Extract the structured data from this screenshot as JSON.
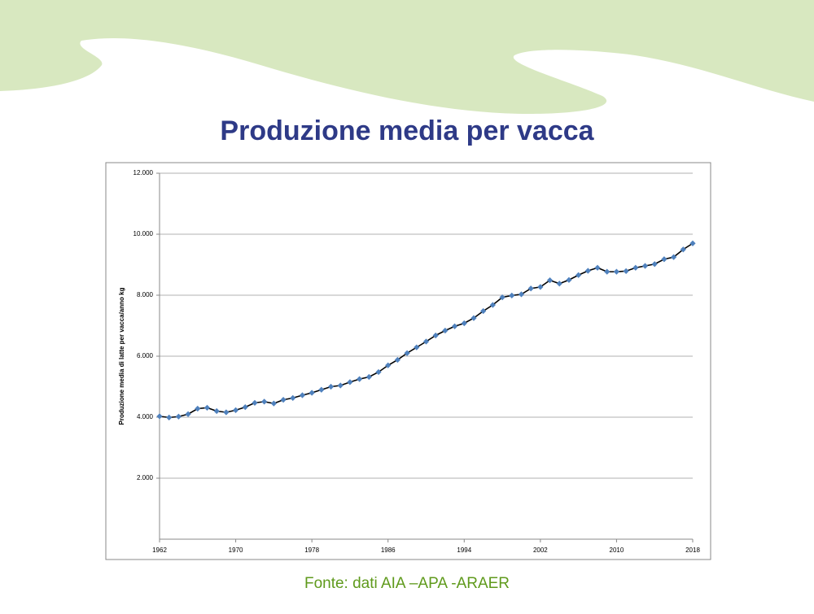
{
  "title": "Produzione media per vacca",
  "source": "Fonte: dati AIA –APA -ARAER",
  "chart_data": {
    "type": "line",
    "y_label": "Produzione media di latte per vacca/anno kg",
    "x": [
      1962,
      1963,
      1964,
      1965,
      1966,
      1967,
      1968,
      1969,
      1970,
      1971,
      1972,
      1973,
      1974,
      1975,
      1976,
      1977,
      1978,
      1979,
      1980,
      1981,
      1982,
      1983,
      1984,
      1985,
      1986,
      1987,
      1988,
      1989,
      1990,
      1991,
      1992,
      1993,
      1994,
      1995,
      1996,
      1997,
      1998,
      1999,
      2000,
      2001,
      2002,
      2003,
      2004,
      2005,
      2006,
      2007,
      2008,
      2009,
      2010,
      2011,
      2012,
      2013,
      2014,
      2015,
      2016,
      2017,
      2018
    ],
    "values": [
      4030,
      3990,
      4020,
      4100,
      4280,
      4310,
      4200,
      4160,
      4230,
      4330,
      4470,
      4510,
      4450,
      4570,
      4630,
      4720,
      4800,
      4900,
      5000,
      5040,
      5150,
      5250,
      5320,
      5480,
      5700,
      5880,
      6100,
      6290,
      6480,
      6680,
      6840,
      6980,
      7080,
      7250,
      7480,
      7680,
      7930,
      7990,
      8030,
      8220,
      8270,
      8490,
      8380,
      8500,
      8660,
      8800,
      8900,
      8770,
      8770,
      8790,
      8900,
      8960,
      9020,
      9180,
      9250,
      9500,
      9700
    ],
    "color": "#4f81bd",
    "line_color": "#000000",
    "xlim": [
      1962,
      2018
    ],
    "xticks": [
      1962,
      1970,
      1978,
      1986,
      1994,
      2002,
      2010,
      2018
    ],
    "ylim": [
      0,
      12000
    ],
    "yticks": [
      {
        "value": 2000,
        "label": "2.000"
      },
      {
        "value": 4000,
        "label": "4.000"
      },
      {
        "value": 6000,
        "label": "6.000"
      },
      {
        "value": 8000,
        "label": "8.000"
      },
      {
        "value": 10000,
        "label": "10.000"
      },
      {
        "value": 12000,
        "label": "12.000"
      }
    ],
    "grid": true
  }
}
